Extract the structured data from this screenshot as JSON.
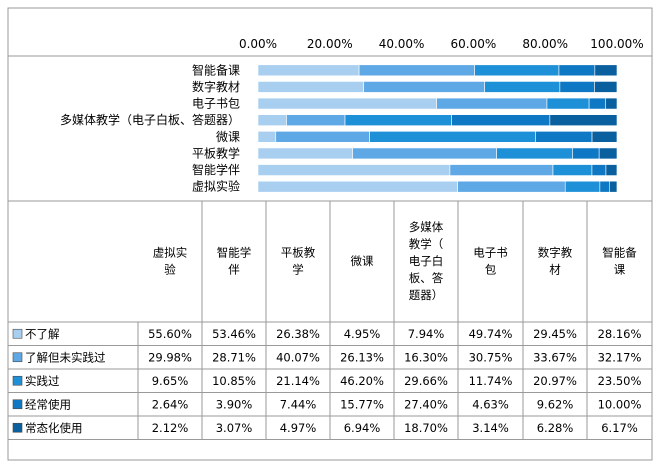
{
  "chart_data": {
    "type": "bar",
    "stacked": true,
    "orientation": "horizontal",
    "xlim": [
      0,
      100
    ],
    "x_ticks": [
      "0.00%",
      "20.00%",
      "40.00%",
      "60.00%",
      "80.00%",
      "100.00%"
    ],
    "categories": [
      "智能备课",
      "数字教材",
      "电子书包",
      "多媒体教学（电子白板、答题器）",
      "微课",
      "平板教学",
      "智能学伴",
      "虚拟实验"
    ],
    "series": [
      {
        "name": "不了解",
        "color": "#a9cff0",
        "values": [
          28.16,
          29.45,
          49.74,
          7.94,
          4.95,
          26.38,
          53.46,
          55.6
        ]
      },
      {
        "name": "了解但未实践过",
        "color": "#5fa8e6",
        "values": [
          32.17,
          33.67,
          30.75,
          16.3,
          26.13,
          40.07,
          28.71,
          29.98
        ]
      },
      {
        "name": "实践过",
        "color": "#1e90d8",
        "values": [
          23.5,
          20.97,
          11.74,
          29.66,
          46.2,
          21.14,
          10.85,
          9.65
        ]
      },
      {
        "name": "经常使用",
        "color": "#0f78c4",
        "values": [
          10.0,
          9.62,
          4.63,
          27.4,
          15.77,
          7.44,
          3.9,
          2.64
        ]
      },
      {
        "name": "常态化使用",
        "color": "#0a5f9e",
        "values": [
          6.17,
          6.28,
          3.14,
          18.7,
          6.94,
          4.97,
          3.07,
          2.12
        ]
      }
    ],
    "table": {
      "columns": [
        "虚拟实验",
        "智能学伴",
        "平板教学",
        "微课",
        "多媒体教学（电子白板、答题器）",
        "电子书包",
        "数字教材",
        "智能备课"
      ],
      "rows": [
        {
          "label": "不了解",
          "color": "#a9cff0",
          "cells": [
            "55.60%",
            "53.46%",
            "26.38%",
            "4.95%",
            "7.94%",
            "49.74%",
            "29.45%",
            "28.16%"
          ]
        },
        {
          "label": "了解但未实践过",
          "color": "#5fa8e6",
          "cells": [
            "29.98%",
            "28.71%",
            "40.07%",
            "26.13%",
            "16.30%",
            "30.75%",
            "33.67%",
            "32.17%"
          ]
        },
        {
          "label": "实践过",
          "color": "#1e90d8",
          "cells": [
            "9.65%",
            "10.85%",
            "21.14%",
            "46.20%",
            "29.66%",
            "11.74%",
            "20.97%",
            "23.50%"
          ]
        },
        {
          "label": "经常使用",
          "color": "#0f78c4",
          "cells": [
            "2.64%",
            "3.90%",
            "7.44%",
            "15.77%",
            "27.40%",
            "4.63%",
            "9.62%",
            "10.00%"
          ]
        },
        {
          "label": "常态化使用",
          "color": "#0a5f9e",
          "cells": [
            "2.12%",
            "3.07%",
            "4.97%",
            "6.94%",
            "18.70%",
            "3.14%",
            "6.28%",
            "6.17%"
          ]
        }
      ]
    }
  }
}
